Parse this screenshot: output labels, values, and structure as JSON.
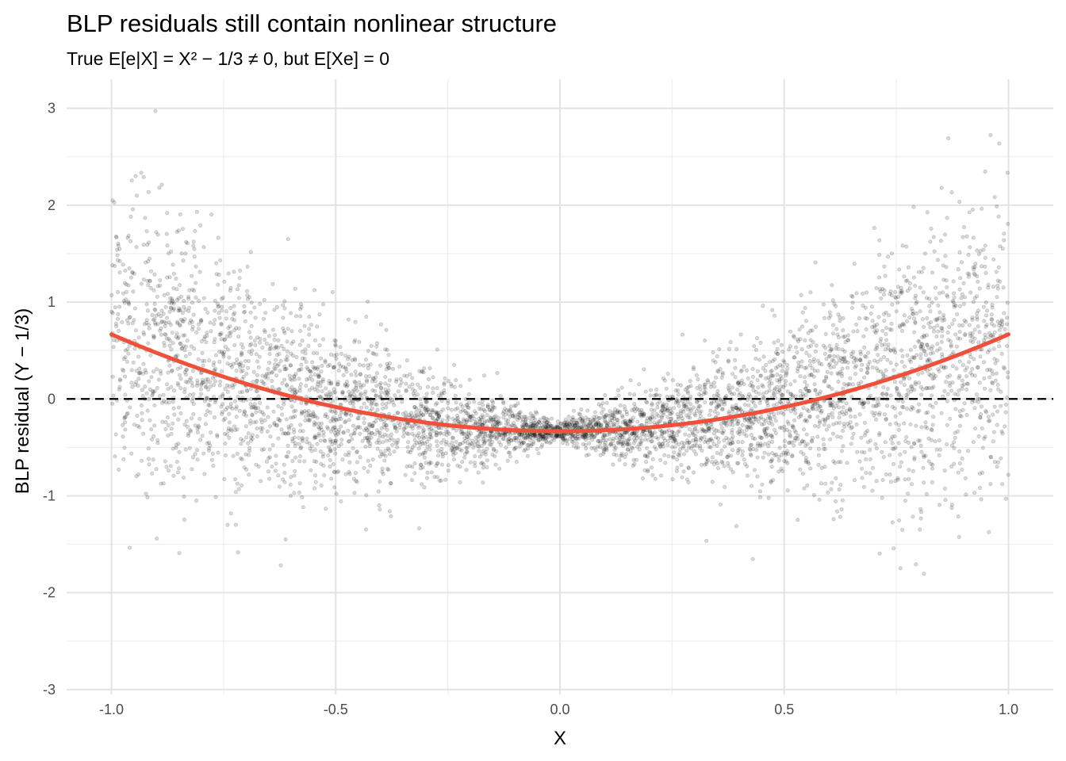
{
  "chart_data": {
    "type": "scatter",
    "title": "BLP residuals still contain nonlinear structure",
    "subtitle": "True E[e|X] = X² − 1/3 ≠ 0, but E[Xe] = 0",
    "xlabel": "X",
    "ylabel": "BLP residual (Y − 1/3)",
    "xlim": [
      -1.1,
      1.1
    ],
    "ylim": [
      -3.05,
      3.3
    ],
    "x_ticks": [
      -1.0,
      -0.5,
      0.0,
      0.5,
      1.0
    ],
    "x_tick_labels": [
      "-1.0",
      "-0.5",
      "0.0",
      "0.5",
      "1.0"
    ],
    "y_ticks": [
      -3,
      -2,
      -1,
      0,
      1,
      2,
      3
    ],
    "y_tick_labels": [
      "-3",
      "-2",
      "-1",
      "0",
      "1",
      "2",
      "3"
    ],
    "grid": true,
    "legend": "none",
    "reference_line": {
      "y": 0,
      "style": "dashed",
      "color": "#000000"
    },
    "curve": {
      "function": "X^2 - 1/3",
      "x_range": [
        -1,
        1
      ],
      "color": "#f05039"
    },
    "points_style": {
      "color": "#000000",
      "alpha": 0.15
    },
    "points": {
      "count": 5000,
      "x_range": [
        -1,
        1
      ],
      "mean": "X^2 - 1/3",
      "spread_sd": "0.05 + 0.75 * |X|"
    }
  }
}
